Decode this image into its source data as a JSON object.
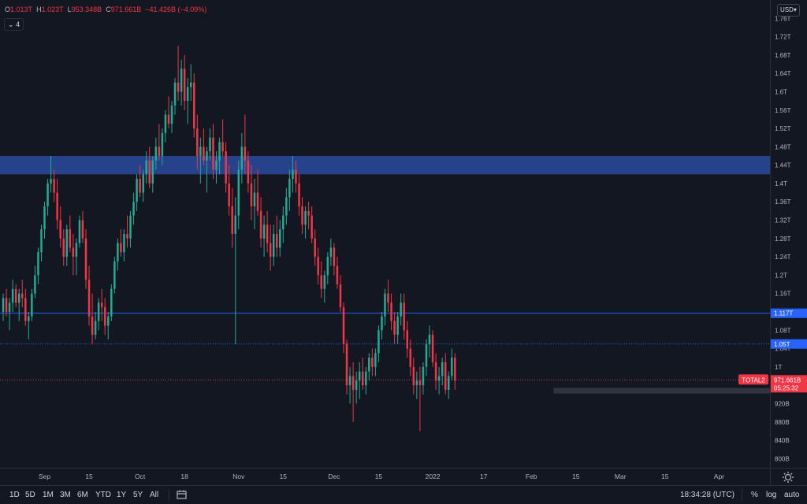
{
  "legend": {
    "o_key": "O",
    "o_val": "1.013T",
    "h_key": "H",
    "h_val": "1.023T",
    "l_key": "L",
    "l_val": "953.348B",
    "c_key": "C",
    "c_val": "971.661B",
    "change": "−41.426B (−4.09%)",
    "indicators_toggle": "4"
  },
  "currency": "USD",
  "chart_data": {
    "type": "candlestick",
    "symbol": "TOTAL2",
    "y_axis": {
      "ylim": [
        0.78,
        1.8
      ],
      "ticks": [
        {
          "v": 1.76,
          "label": "1.76T"
        },
        {
          "v": 1.72,
          "label": "1.72T"
        },
        {
          "v": 1.68,
          "label": "1.68T"
        },
        {
          "v": 1.64,
          "label": "1.64T"
        },
        {
          "v": 1.6,
          "label": "1.6T"
        },
        {
          "v": 1.56,
          "label": "1.56T"
        },
        {
          "v": 1.52,
          "label": "1.52T"
        },
        {
          "v": 1.48,
          "label": "1.48T"
        },
        {
          "v": 1.44,
          "label": "1.44T"
        },
        {
          "v": 1.4,
          "label": "1.4T"
        },
        {
          "v": 1.36,
          "label": "1.36T"
        },
        {
          "v": 1.32,
          "label": "1.32T"
        },
        {
          "v": 1.28,
          "label": "1.28T"
        },
        {
          "v": 1.24,
          "label": "1.24T"
        },
        {
          "v": 1.2,
          "label": "1.2T"
        },
        {
          "v": 1.16,
          "label": "1.16T"
        },
        {
          "v": 1.08,
          "label": "1.08T"
        },
        {
          "v": 1.0,
          "label": "1T"
        },
        {
          "v": 0.92,
          "label": "920B"
        },
        {
          "v": 0.88,
          "label": "880B"
        },
        {
          "v": 0.84,
          "label": "840B"
        },
        {
          "v": 0.8,
          "label": "800B"
        }
      ]
    },
    "x_axis": {
      "labels": [
        {
          "day": 0,
          "label": "Sep"
        },
        {
          "day": 14,
          "label": "15"
        },
        {
          "day": 30,
          "label": "Oct"
        },
        {
          "day": 44,
          "label": "18"
        },
        {
          "day": 61,
          "label": "Nov"
        },
        {
          "day": 75,
          "label": "15"
        },
        {
          "day": 91,
          "label": "Dec"
        },
        {
          "day": 105,
          "label": "15"
        },
        {
          "day": 122,
          "label": "2022"
        },
        {
          "day": 138,
          "label": "17"
        },
        {
          "day": 153,
          "label": "Feb"
        },
        {
          "day": 167,
          "label": "15"
        },
        {
          "day": 181,
          "label": "Mar"
        },
        {
          "day": 195,
          "label": "15"
        },
        {
          "day": 212,
          "label": "Apr"
        }
      ],
      "day_range": [
        -14,
        228
      ]
    },
    "zones": [
      {
        "name": "resistance-zone",
        "y1": 1.42,
        "y2": 1.46,
        "color": "#2a4a9e"
      },
      {
        "name": "support-zone",
        "y1": 0.942,
        "y2": 0.954,
        "color": "#363a45",
        "start_day": 160
      }
    ],
    "levels": [
      {
        "name": "level-1117",
        "y": 1.117,
        "label": "1.117T",
        "style": "solid",
        "color": "#2962ff"
      },
      {
        "name": "level-105",
        "y": 1.05,
        "label": "1.05T",
        "style": "dotted",
        "color": "#2962ff"
      }
    ],
    "last_price": {
      "y": 0.9717,
      "label": "971.661B",
      "countdown": "05:25:32",
      "color": "#f23645"
    },
    "extra_tick": {
      "v": 1.04,
      "label": "1.04T"
    },
    "up_color": "#22ab94",
    "down_color": "#f23645",
    "candles_start_day": -13,
    "candles": [
      [
        1.12,
        1.16,
        1.1,
        1.15
      ],
      [
        1.15,
        1.17,
        1.11,
        1.12
      ],
      [
        1.12,
        1.15,
        1.08,
        1.14
      ],
      [
        1.14,
        1.19,
        1.12,
        1.17
      ],
      [
        1.17,
        1.18,
        1.13,
        1.14
      ],
      [
        1.14,
        1.17,
        1.1,
        1.16
      ],
      [
        1.16,
        1.19,
        1.13,
        1.15
      ],
      [
        1.15,
        1.17,
        1.09,
        1.1
      ],
      [
        1.1,
        1.12,
        1.06,
        1.11
      ],
      [
        1.11,
        1.17,
        1.1,
        1.16
      ],
      [
        1.16,
        1.22,
        1.15,
        1.2
      ],
      [
        1.2,
        1.26,
        1.18,
        1.25
      ],
      [
        1.25,
        1.31,
        1.23,
        1.3
      ],
      [
        1.3,
        1.36,
        1.28,
        1.35
      ],
      [
        1.35,
        1.41,
        1.33,
        1.4
      ],
      [
        1.4,
        1.46,
        1.38,
        1.41
      ],
      [
        1.41,
        1.43,
        1.36,
        1.38
      ],
      [
        1.38,
        1.41,
        1.3,
        1.32
      ],
      [
        1.32,
        1.35,
        1.26,
        1.28
      ],
      [
        1.28,
        1.3,
        1.22,
        1.24
      ],
      [
        1.24,
        1.31,
        1.22,
        1.3
      ],
      [
        1.3,
        1.33,
        1.25,
        1.26
      ],
      [
        1.26,
        1.29,
        1.2,
        1.24
      ],
      [
        1.24,
        1.28,
        1.2,
        1.27
      ],
      [
        1.27,
        1.33,
        1.26,
        1.32
      ],
      [
        1.32,
        1.34,
        1.27,
        1.28
      ],
      [
        1.28,
        1.3,
        1.17,
        1.19
      ],
      [
        1.19,
        1.22,
        1.09,
        1.11
      ],
      [
        1.11,
        1.16,
        1.05,
        1.07
      ],
      [
        1.07,
        1.12,
        1.06,
        1.1
      ],
      [
        1.1,
        1.15,
        1.08,
        1.14
      ],
      [
        1.14,
        1.17,
        1.1,
        1.13
      ],
      [
        1.13,
        1.15,
        1.07,
        1.09
      ],
      [
        1.09,
        1.12,
        1.06,
        1.11
      ],
      [
        1.11,
        1.18,
        1.1,
        1.17
      ],
      [
        1.17,
        1.24,
        1.16,
        1.23
      ],
      [
        1.23,
        1.28,
        1.21,
        1.27
      ],
      [
        1.27,
        1.3,
        1.24,
        1.25
      ],
      [
        1.25,
        1.3,
        1.23,
        1.29
      ],
      [
        1.29,
        1.33,
        1.26,
        1.28
      ],
      [
        1.28,
        1.34,
        1.26,
        1.33
      ],
      [
        1.33,
        1.38,
        1.31,
        1.36
      ],
      [
        1.36,
        1.42,
        1.34,
        1.41
      ],
      [
        1.41,
        1.44,
        1.37,
        1.38
      ],
      [
        1.38,
        1.43,
        1.36,
        1.42
      ],
      [
        1.42,
        1.47,
        1.4,
        1.45
      ],
      [
        1.45,
        1.48,
        1.39,
        1.4
      ],
      [
        1.4,
        1.46,
        1.38,
        1.45
      ],
      [
        1.45,
        1.5,
        1.43,
        1.48
      ],
      [
        1.48,
        1.53,
        1.45,
        1.46
      ],
      [
        1.46,
        1.52,
        1.44,
        1.51
      ],
      [
        1.51,
        1.56,
        1.49,
        1.55
      ],
      [
        1.55,
        1.59,
        1.52,
        1.53
      ],
      [
        1.53,
        1.58,
        1.51,
        1.57
      ],
      [
        1.57,
        1.63,
        1.55,
        1.62
      ],
      [
        1.62,
        1.7,
        1.58,
        1.6
      ],
      [
        1.6,
        1.67,
        1.57,
        1.65
      ],
      [
        1.65,
        1.68,
        1.56,
        1.58
      ],
      [
        1.58,
        1.63,
        1.53,
        1.61
      ],
      [
        1.61,
        1.66,
        1.58,
        1.62
      ],
      [
        1.62,
        1.64,
        1.5,
        1.52
      ],
      [
        1.52,
        1.55,
        1.43,
        1.46
      ],
      [
        1.46,
        1.5,
        1.4,
        1.48
      ],
      [
        1.48,
        1.52,
        1.44,
        1.45
      ],
      [
        1.45,
        1.48,
        1.38,
        1.47
      ],
      [
        1.47,
        1.52,
        1.45,
        1.5
      ],
      [
        1.5,
        1.53,
        1.41,
        1.43
      ],
      [
        1.43,
        1.47,
        1.4,
        1.45
      ],
      [
        1.45,
        1.5,
        1.42,
        1.49
      ],
      [
        1.49,
        1.54,
        1.46,
        1.47
      ],
      [
        1.47,
        1.49,
        1.38,
        1.4
      ],
      [
        1.4,
        1.44,
        1.33,
        1.35
      ],
      [
        1.35,
        1.39,
        1.26,
        1.29
      ],
      [
        1.29,
        1.37,
        1.05,
        1.33
      ],
      [
        1.33,
        1.45,
        1.3,
        1.43
      ],
      [
        1.43,
        1.51,
        1.4,
        1.48
      ],
      [
        1.48,
        1.55,
        1.42,
        1.45
      ],
      [
        1.45,
        1.47,
        1.38,
        1.4
      ],
      [
        1.4,
        1.44,
        1.32,
        1.35
      ],
      [
        1.35,
        1.41,
        1.3,
        1.38
      ],
      [
        1.38,
        1.43,
        1.33,
        1.34
      ],
      [
        1.34,
        1.37,
        1.26,
        1.28
      ],
      [
        1.28,
        1.33,
        1.24,
        1.31
      ],
      [
        1.31,
        1.34,
        1.25,
        1.27
      ],
      [
        1.27,
        1.31,
        1.21,
        1.24
      ],
      [
        1.24,
        1.31,
        1.22,
        1.29
      ],
      [
        1.29,
        1.33,
        1.24,
        1.26
      ],
      [
        1.26,
        1.32,
        1.24,
        1.3
      ],
      [
        1.3,
        1.35,
        1.27,
        1.33
      ],
      [
        1.33,
        1.39,
        1.31,
        1.37
      ],
      [
        1.37,
        1.43,
        1.34,
        1.41
      ],
      [
        1.41,
        1.46,
        1.38,
        1.43
      ],
      [
        1.43,
        1.45,
        1.38,
        1.4
      ],
      [
        1.4,
        1.42,
        1.33,
        1.35
      ],
      [
        1.35,
        1.37,
        1.29,
        1.31
      ],
      [
        1.31,
        1.35,
        1.28,
        1.34
      ],
      [
        1.34,
        1.36,
        1.3,
        1.33
      ],
      [
        1.33,
        1.35,
        1.27,
        1.28
      ],
      [
        1.28,
        1.3,
        1.22,
        1.24
      ],
      [
        1.24,
        1.26,
        1.18,
        1.2
      ],
      [
        1.2,
        1.23,
        1.15,
        1.17
      ],
      [
        1.17,
        1.21,
        1.14,
        1.2
      ],
      [
        1.2,
        1.25,
        1.18,
        1.24
      ],
      [
        1.24,
        1.28,
        1.22,
        1.26
      ],
      [
        1.26,
        1.27,
        1.2,
        1.22
      ],
      [
        1.22,
        1.24,
        1.17,
        1.18
      ],
      [
        1.18,
        1.2,
        1.12,
        1.13
      ],
      [
        1.13,
        1.14,
        1.03,
        1.05
      ],
      [
        1.05,
        1.06,
        0.94,
        0.96
      ],
      [
        0.96,
        1.0,
        0.92,
        0.98
      ],
      [
        0.98,
        1.01,
        0.88,
        0.95
      ],
      [
        0.95,
        0.99,
        0.92,
        0.97
      ],
      [
        0.97,
        1.01,
        0.93,
        0.99
      ],
      [
        0.99,
        1.02,
        0.95,
        0.96
      ],
      [
        0.96,
        1.0,
        0.94,
        0.99
      ],
      [
        0.99,
        1.03,
        0.97,
        1.02
      ],
      [
        1.02,
        1.04,
        0.98,
        1.0
      ],
      [
        1.0,
        1.04,
        0.98,
        1.03
      ],
      [
        1.03,
        1.09,
        1.01,
        1.08
      ],
      [
        1.08,
        1.12,
        1.06,
        1.11
      ],
      [
        1.11,
        1.17,
        1.09,
        1.16
      ],
      [
        1.16,
        1.19,
        1.12,
        1.14
      ],
      [
        1.14,
        1.16,
        1.08,
        1.1
      ],
      [
        1.1,
        1.12,
        1.05,
        1.07
      ],
      [
        1.07,
        1.12,
        1.05,
        1.11
      ],
      [
        1.11,
        1.16,
        1.09,
        1.14
      ],
      [
        1.14,
        1.16,
        1.06,
        1.08
      ],
      [
        1.08,
        1.1,
        1.02,
        1.04
      ],
      [
        1.04,
        1.06,
        0.98,
        1.0
      ],
      [
        1.0,
        1.02,
        0.94,
        0.96
      ],
      [
        0.96,
        0.99,
        0.93,
        0.97
      ],
      [
        0.97,
        1.0,
        0.86,
        0.96
      ],
      [
        0.96,
        1.01,
        0.94,
        1.0
      ],
      [
        1.0,
        1.06,
        0.98,
        1.05
      ],
      [
        1.05,
        1.09,
        1.02,
        1.07
      ],
      [
        1.07,
        1.08,
        1.0,
        1.01
      ],
      [
        1.01,
        1.03,
        0.95,
        0.97
      ],
      [
        0.97,
        1.0,
        0.94,
        0.98
      ],
      [
        0.98,
        1.02,
        0.96,
        1.01
      ],
      [
        1.01,
        1.03,
        0.94,
        0.95
      ],
      [
        0.95,
        0.99,
        0.93,
        0.98
      ],
      [
        0.98,
        1.04,
        0.97,
        1.02
      ],
      [
        1.02,
        1.03,
        0.95,
        0.97
      ]
    ]
  },
  "timeframes": [
    "1D",
    "5D",
    "1M",
    "3M",
    "6M",
    "YTD",
    "1Y",
    "5Y",
    "All"
  ],
  "clock": "18:34:28 (UTC)",
  "bottom_right": {
    "percent": "%",
    "log": "log",
    "auto": "auto"
  }
}
